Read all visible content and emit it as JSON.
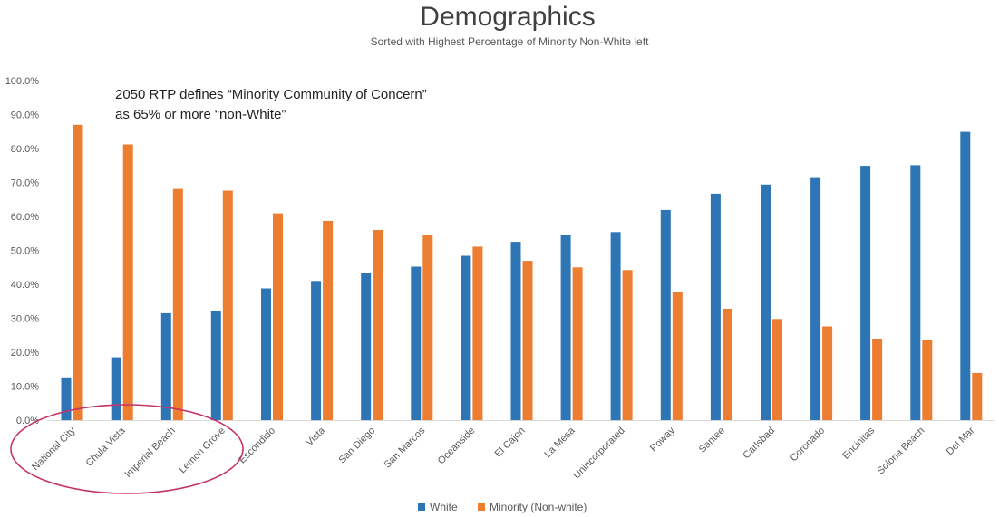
{
  "chart_data": {
    "type": "bar",
    "title": "Demographics",
    "subtitle": "Sorted with Highest Percentage of Minority Non-White left",
    "annotation_line1": "2050 RTP defines “Minority Community of Concern”",
    "annotation_line2": "as 65% or more “non-White”",
    "ylim": [
      0,
      100
    ],
    "y_ticks": [
      "0.0%",
      "10.0%",
      "20.0%",
      "30.0%",
      "40.0%",
      "50.0%",
      "60.0%",
      "70.0%",
      "80.0%",
      "90.0%",
      "100.0%"
    ],
    "categories": [
      "National City",
      "Chula Vista",
      "Imperial Beach",
      "Lemon Grove",
      "Escondido",
      "Vista",
      "San Diego",
      "San Marcos",
      "Oceanside",
      "El Cajon",
      "La Mesa",
      "Unincorporated",
      "Poway",
      "Santee",
      "Carlsbad",
      "Coronado",
      "Encinitas",
      "Solona Beach",
      "Del Mar"
    ],
    "series": [
      {
        "name": "White",
        "color": "#2e75b6",
        "values": [
          12.6,
          18.5,
          31.5,
          32.1,
          38.8,
          41.0,
          43.4,
          45.2,
          48.4,
          52.5,
          54.5,
          55.4,
          61.9,
          66.7,
          69.4,
          71.3,
          74.9,
          75.1,
          84.9
        ]
      },
      {
        "name": "Minority (Non-white)",
        "color": "#ed7d31",
        "values": [
          87.0,
          81.2,
          68.1,
          67.6,
          60.9,
          58.7,
          56.0,
          54.5,
          51.1,
          46.9,
          45.0,
          44.2,
          37.6,
          32.8,
          29.8,
          27.6,
          24.0,
          23.5,
          13.9
        ]
      }
    ],
    "legend_position": "bottom",
    "grid": false,
    "highlight_ellipse_color": "#c4336a"
  }
}
